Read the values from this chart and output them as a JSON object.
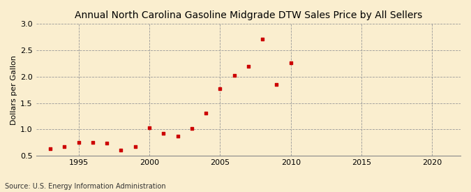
{
  "title": "Annual North Carolina Gasoline Midgrade DTW Sales Price by All Sellers",
  "ylabel": "Dollars per Gallon",
  "source": "Source: U.S. Energy Information Administration",
  "background_color": "#faeecf",
  "marker_color": "#cc0000",
  "years": [
    1993,
    1994,
    1995,
    1996,
    1997,
    1998,
    1999,
    2000,
    2001,
    2002,
    2003,
    2004,
    2005,
    2006,
    2007,
    2008,
    2009,
    2010
  ],
  "values": [
    0.63,
    0.67,
    0.75,
    0.75,
    0.74,
    0.61,
    0.67,
    1.03,
    0.93,
    0.87,
    1.02,
    1.31,
    1.77,
    2.03,
    2.2,
    2.71,
    1.85,
    2.26
  ],
  "xlim": [
    1992,
    2022
  ],
  "ylim": [
    0.5,
    3.0
  ],
  "xticks": [
    1995,
    2000,
    2005,
    2010,
    2015,
    2020
  ],
  "yticks": [
    0.5,
    1.0,
    1.5,
    2.0,
    2.5,
    3.0
  ],
  "grid_color": "#999999",
  "title_fontsize": 10,
  "label_fontsize": 8,
  "tick_fontsize": 8,
  "source_fontsize": 7
}
